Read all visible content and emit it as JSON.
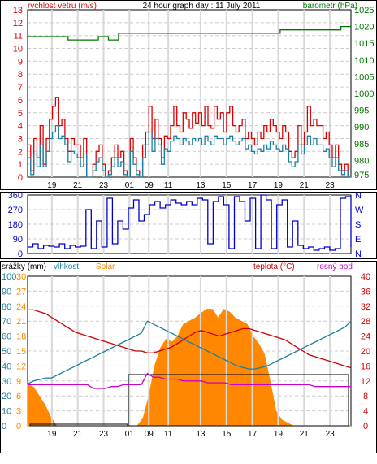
{
  "chart_data": [
    {
      "type": "line",
      "title": "24 hour graph day : 11 July 2011",
      "left_axis_label": "rychlost vetru (m/s)",
      "right_axis_label": "barometr (hPa)",
      "x_ticks": [
        "19",
        "21",
        "23",
        "01",
        "09",
        "11",
        "13",
        "15",
        "17",
        "19",
        "21",
        "23"
      ],
      "left_ticks": [
        "0",
        "1",
        "2",
        "3",
        "4",
        "5",
        "6",
        "7",
        "8",
        "9",
        "10",
        "11",
        "12",
        "13"
      ],
      "right_ticks": [
        "975",
        "980",
        "985",
        "990",
        "995",
        "1000",
        "1005",
        "1010",
        "1015",
        "1020",
        "1025"
      ],
      "ylim_left": [
        0,
        13
      ],
      "ylim_right": [
        975,
        1025
      ],
      "grid": true,
      "series": [
        {
          "name": "rychlost vetru (m/s)",
          "role": "gust",
          "color": "#dd0000",
          "axis": "left",
          "values": [
            2.5,
            0.5,
            3,
            1.5,
            4,
            1,
            3,
            4.5,
            5.5,
            6.2,
            4,
            4.5,
            3,
            2,
            3,
            2.5,
            2.5,
            1.5,
            3,
            0,
            0,
            1,
            2,
            2.5,
            1,
            0,
            0.5,
            1.5,
            2.5,
            1.5,
            2,
            0.5,
            0,
            3,
            1.5,
            0.5,
            0,
            2.5,
            3.5,
            5.5,
            3,
            4.5,
            3,
            1.5,
            3.2,
            3,
            4,
            5.5,
            4,
            3.5,
            5,
            4.5,
            3.8,
            5,
            4.2,
            5,
            4,
            5.5,
            4,
            3.8,
            5.5,
            4.5,
            5,
            3.5,
            5,
            5.5,
            4,
            3.5,
            4,
            4.5,
            3,
            3.5,
            3,
            2.5,
            3.5,
            3,
            4,
            3.5,
            4.5,
            4,
            3.5,
            3,
            4,
            3.5,
            2,
            1.5,
            2,
            4,
            2.5,
            3.5,
            5.5,
            4,
            4.5,
            4,
            4,
            3,
            3.5,
            2.5,
            1.5,
            2.5,
            1,
            0.5,
            1,
            0,
            0
          ]
        },
        {
          "name": "vitr prumer",
          "role": "avg",
          "color": "#1a7fa0",
          "axis": "left",
          "values": [
            1.5,
            0.2,
            1.8,
            0.8,
            2.5,
            0.8,
            2,
            3,
            3.5,
            4,
            3,
            3.2,
            2.5,
            1.2,
            2,
            1.8,
            1.5,
            0.8,
            1.8,
            0,
            0,
            0.5,
            1.2,
            1.5,
            0.5,
            0,
            0.2,
            0.8,
            1.5,
            0.8,
            1.2,
            0.2,
            0,
            2,
            1,
            0.2,
            0,
            1.5,
            2.5,
            3.5,
            2,
            3,
            2.5,
            1,
            2.2,
            2,
            2.8,
            3.2,
            3,
            2.5,
            3,
            2.8,
            2.5,
            3,
            2.8,
            3,
            2.5,
            3.2,
            2.8,
            2.5,
            3.2,
            3,
            3,
            2.5,
            3,
            3.2,
            2.8,
            2.5,
            2.8,
            3,
            2.2,
            2.5,
            2,
            1.8,
            2.2,
            2,
            2.5,
            2.2,
            2.8,
            2.5,
            2.2,
            2,
            2.5,
            2.2,
            1.2,
            0.8,
            1.2,
            2.5,
            1.8,
            2.5,
            3.2,
            2.5,
            3,
            2.5,
            2.5,
            2,
            2.2,
            1.5,
            0.8,
            1.5,
            0.5,
            0.2,
            0.5,
            0,
            0
          ]
        },
        {
          "name": "barometr (hPa)",
          "role": "pressure",
          "color": "#007700",
          "axis": "right",
          "values": [
            1017,
            1017,
            1017,
            1017,
            1016,
            1016,
            1016,
            1017,
            1016,
            1018,
            1018,
            1018,
            1018,
            1018,
            1018,
            1018,
            1018,
            1018,
            1018,
            1018,
            1018,
            1018,
            1018,
            1018,
            1018,
            1019,
            1019,
            1019,
            1019,
            1019,
            1019,
            1020,
            1020
          ]
        }
      ]
    },
    {
      "type": "line",
      "left_ticks": [
        "0",
        "90",
        "180",
        "270",
        "360"
      ],
      "right_ticks": [
        "N",
        "E",
        "S",
        "W",
        "N"
      ],
      "ylim": [
        0,
        360
      ],
      "series": [
        {
          "name": "smer vetru",
          "color": "#0000cc",
          "values": [
            40,
            60,
            30,
            50,
            45,
            40,
            60,
            30,
            50,
            40,
            45,
            270,
            30,
            200,
            40,
            340,
            60,
            200,
            150,
            280,
            330,
            200,
            240,
            300,
            320,
            280,
            300,
            330,
            310,
            300,
            320,
            300,
            340,
            330,
            60,
            320,
            350,
            300,
            30,
            350,
            320,
            200,
            340,
            30,
            360,
            330,
            30,
            300,
            330,
            40,
            200,
            50,
            30,
            40,
            20,
            30,
            40,
            20,
            30,
            340,
            350,
            40
          ]
        }
      ]
    },
    {
      "type": "line",
      "legend": [
        "srážky (mm)",
        "vlhkost",
        "Solar",
        "teplota (°C)",
        "rosný bod"
      ],
      "left_ticks_1": [
        "0",
        "10",
        "20",
        "30",
        "40",
        "50",
        "60",
        "70",
        "80",
        "90",
        "100"
      ],
      "left_ticks_2": [
        "0",
        "3",
        "6",
        "9",
        "12",
        "15",
        "18",
        "21",
        "24",
        "27",
        "30"
      ],
      "right_ticks": [
        "0",
        "4",
        "8",
        "12",
        "16",
        "20",
        "24",
        "28",
        "32",
        "36",
        "40"
      ],
      "ylim_left": [
        0,
        100
      ],
      "ylim_right": [
        0,
        40
      ],
      "series": [
        {
          "name": "Solar",
          "color": "#ff8800",
          "axis": "left",
          "values": [
            28,
            26,
            20,
            14,
            6,
            0,
            0,
            0,
            0,
            0,
            0,
            0,
            0,
            0,
            0,
            0,
            0,
            0,
            0,
            0,
            5,
            20,
            40,
            52,
            58,
            56,
            60,
            68,
            70,
            72,
            75,
            78,
            78,
            72,
            78,
            76,
            72,
            70,
            68,
            60,
            55,
            48,
            30,
            10,
            4,
            2,
            0,
            0,
            0,
            0,
            0,
            0,
            0,
            0,
            0,
            0,
            0
          ]
        },
        {
          "name": "vlhkost",
          "color": "#1a7fa0",
          "axis": "left",
          "values": [
            28,
            30,
            31,
            32,
            32,
            34,
            36,
            38,
            40,
            42,
            44,
            46,
            48,
            50,
            52,
            54,
            56,
            58,
            60,
            62,
            70,
            68,
            66,
            64,
            62,
            60,
            58,
            56,
            54,
            52,
            50,
            48,
            46,
            44,
            42,
            40,
            39,
            38,
            38,
            39,
            40,
            42,
            44,
            46,
            48,
            50,
            52,
            54,
            56,
            58,
            60,
            62,
            64,
            66,
            70
          ]
        },
        {
          "name": "teplota (°C)",
          "color": "#cc0000",
          "axis": "right",
          "values": [
            31,
            31,
            30.5,
            30,
            29,
            28,
            27,
            26,
            25,
            24.5,
            24,
            23.5,
            23,
            22.5,
            22,
            21.5,
            21,
            20.5,
            20,
            20,
            19.5,
            19.5,
            20,
            20.5,
            21,
            22,
            23,
            24,
            25,
            25.5,
            25,
            24.5,
            24,
            24.5,
            25,
            25.5,
            26,
            26,
            25.5,
            25,
            24.5,
            24,
            23.5,
            23,
            22,
            21,
            20,
            19,
            18.5,
            18,
            17.5,
            17,
            16.5,
            16,
            15.5
          ]
        },
        {
          "name": "rosný bod",
          "color": "#cc00cc",
          "axis": "right",
          "values": [
            11,
            11,
            11,
            11,
            11,
            11,
            11,
            11,
            11,
            11,
            11,
            10,
            10,
            10,
            10.5,
            10.5,
            11,
            11,
            11,
            11,
            14,
            13,
            13,
            12.5,
            12.5,
            12.5,
            12,
            12,
            12,
            12,
            11.5,
            11.5,
            11.5,
            11.5,
            11,
            11,
            11,
            11,
            11,
            11,
            11,
            11,
            11,
            11,
            11,
            11,
            11,
            11,
            10.5,
            10.5,
            10.5,
            10.5,
            10.5,
            10.5,
            10.5
          ]
        }
      ]
    }
  ]
}
